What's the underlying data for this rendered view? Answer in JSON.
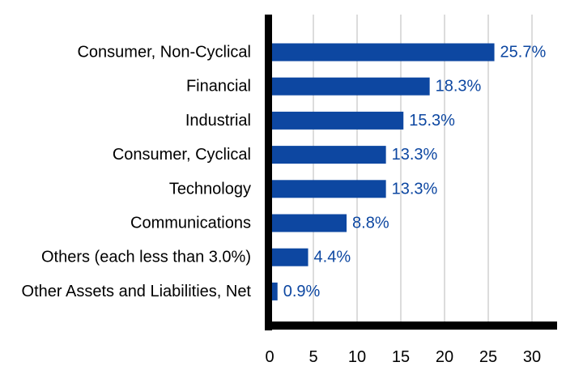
{
  "chart_data": {
    "type": "bar",
    "orientation": "horizontal",
    "categories": [
      "Consumer, Non-Cyclical",
      "Financial",
      "Industrial",
      "Consumer, Cyclical",
      "Technology",
      "Communications",
      "Others (each less than 3.0%)",
      "Other Assets and Liabilities, Net"
    ],
    "values": [
      25.7,
      18.3,
      15.3,
      13.3,
      13.3,
      8.8,
      4.4,
      0.9
    ],
    "value_labels": [
      "25.7%",
      "18.3%",
      "15.3%",
      "13.3%",
      "13.3%",
      "8.8%",
      "4.4%",
      "0.9%"
    ],
    "x_ticks": [
      0,
      5,
      10,
      15,
      20,
      25,
      30
    ],
    "xlim": [
      0,
      33
    ],
    "grid": "vertical",
    "legend": "none",
    "colors": {
      "bar": "#0d47a1",
      "value_label": "#0d47a1",
      "axis": "#000000",
      "grid": "#d0d0d0"
    }
  }
}
